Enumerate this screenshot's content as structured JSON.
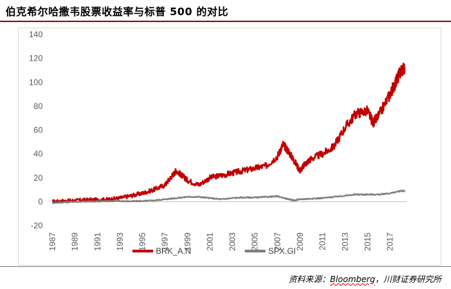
{
  "header": {
    "title": "伯克希尔哈撒韦股票收益率与标普 500 的对比"
  },
  "footer": {
    "source_prefix": "资料来源：",
    "source_brand": "Bloomberg",
    "source_suffix": "，川财证券研究所"
  },
  "chart_data": {
    "type": "line",
    "title": "伯克希尔哈撒韦股票收益率与标普 500 的对比",
    "xlabel": "",
    "ylabel": "",
    "xlim": [
      1987,
      2018.5
    ],
    "ylim": [
      -20,
      140
    ],
    "yticks": [
      -20,
      0,
      20,
      40,
      60,
      80,
      100,
      120,
      140
    ],
    "xticks": [
      "1987",
      "1989",
      "1991",
      "1993",
      "1995",
      "1997",
      "1999",
      "2001",
      "2003",
      "2005",
      "2007",
      "2009",
      "2011",
      "2013",
      "2015",
      "2017"
    ],
    "legend_position": "bottom",
    "grid": false,
    "series": [
      {
        "name": "BRK_A.N",
        "color": "#c00000",
        "x": [
          1987,
          1988,
          1989,
          1990,
          1991,
          1992,
          1993,
          1994,
          1995,
          1996,
          1997,
          1997.5,
          1998,
          1998.5,
          1999,
          2000,
          2001,
          2002,
          2003,
          2004,
          2005,
          2006,
          2007,
          2007.5,
          2008,
          2008.5,
          2009,
          2009.5,
          2010,
          2011,
          2012,
          2013,
          2014,
          2015,
          2015.5,
          2016,
          2017,
          2017.5,
          2018,
          2018.3
        ],
        "y": [
          0,
          0.5,
          1,
          1.5,
          1.5,
          2,
          3,
          5,
          7,
          10,
          14,
          20,
          26,
          22,
          18,
          14,
          20,
          22,
          24,
          26,
          28,
          30,
          38,
          48,
          42,
          34,
          26,
          32,
          36,
          40,
          46,
          62,
          74,
          76,
          66,
          72,
          90,
          100,
          110,
          112
        ]
      },
      {
        "name": "SPX.GI",
        "color": "#808080",
        "x": [
          1987,
          1988,
          1989,
          1990,
          1991,
          1992,
          1993,
          1994,
          1995,
          1996,
          1997,
          1998,
          1999,
          2000,
          2001,
          2002,
          2003,
          2004,
          2005,
          2006,
          2007,
          2008,
          2008.5,
          2009,
          2010,
          2011,
          2012,
          2013,
          2014,
          2015,
          2016,
          2017,
          2018,
          2018.3
        ],
        "y": [
          -1,
          -0.5,
          0,
          0,
          0.3,
          0.5,
          0.5,
          0.3,
          0.5,
          1,
          2,
          3,
          4,
          4,
          3,
          2,
          3,
          3.5,
          3.5,
          4,
          4.5,
          2,
          1,
          2,
          2.5,
          3,
          4,
          5,
          6,
          6,
          6,
          7,
          9,
          9
        ]
      }
    ]
  }
}
